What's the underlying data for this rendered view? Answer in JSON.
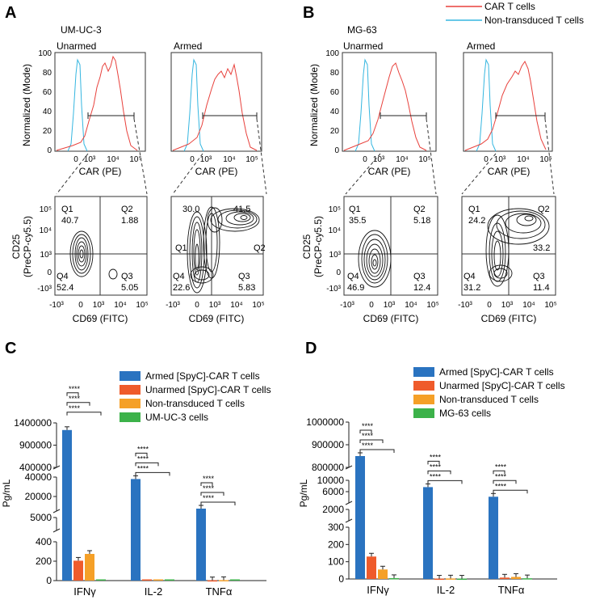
{
  "legend_top": {
    "car": "CAR T cells",
    "nontrans": "Non-transduced T cells"
  },
  "colors": {
    "car": "#e8413c",
    "nontrans": "#35b6e0",
    "armed": "#2a73c0",
    "unarmed": "#ef5b2b",
    "nontrans_bar": "#f5a028",
    "target": "#3cb24a"
  },
  "panels": {
    "A": "A",
    "B": "B",
    "C": "C",
    "D": "D"
  },
  "panel_A": {
    "cell_line": "UM-UC-3",
    "unarmed_label": "Unarmed",
    "armed_label": "Armed",
    "hist_ylabel": "Normalized (Mode)",
    "hist_yticks": [
      "0",
      "20",
      "40",
      "60",
      "80",
      "100"
    ],
    "hist_xlabel": "CAR  (PE)",
    "flow_ylabel_1": "CD25",
    "flow_ylabel_2": "(PreCP-cy5.5)",
    "flow_xlabel": "CD69 (FITC)",
    "flow_yticks": [
      "10⁵",
      "10⁴",
      "10³",
      "0",
      "-10³"
    ],
    "flow_xticks": [
      "-10³",
      "0",
      "10³",
      "10⁴",
      "10⁵"
    ],
    "hist_xticks": [
      "0",
      "10³",
      "10⁴",
      "10⁵"
    ],
    "unarmed_quads": {
      "q1": "Q1",
      "q1v": "40.7",
      "q2": "Q2",
      "q2v": "1.88",
      "q3": "Q3",
      "q3v": "5.05",
      "q4": "Q4",
      "q4v": "52.4"
    },
    "armed_quads": {
      "q1v": "30.0",
      "q2v": "41.5",
      "q1": "Q1",
      "q2": "Q2",
      "q3": "Q3",
      "q3v": "5.83",
      "q4": "Q4",
      "q4v": "22.6"
    }
  },
  "panel_B": {
    "cell_line": "MG-63",
    "unarmed_label": "Unarmed",
    "armed_label": "Armed",
    "unarmed_quads": {
      "q1": "Q1",
      "q1v": "35.5",
      "q2": "Q2",
      "q2v": "5.18",
      "q3": "Q3",
      "q3v": "12.4",
      "q4": "Q4",
      "q4v": "46.9"
    },
    "armed_quads": {
      "q1": "Q1",
      "q1v": "24.2",
      "q2": "Q2",
      "q2v": "33.2",
      "q3": "Q3",
      "q3v": "11.4",
      "q4": "Q4",
      "q4v": "31.2"
    }
  },
  "chart_data": [
    {
      "type": "bar",
      "panel": "C",
      "ylabel": "Pg/mL",
      "categories": [
        "IFNγ",
        "IL-2",
        "TNFα"
      ],
      "series": [
        {
          "name": "Armed [SpyC]-CAR T cells",
          "values": [
            1240000,
            38000,
            7500
          ]
        },
        {
          "name": "Unarmed [SpyC]-CAR T cells",
          "values": [
            205,
            0,
            3
          ]
        },
        {
          "name": "Non-transduced T cells",
          "values": [
            275,
            0,
            5
          ]
        },
        {
          "name": "UM-UC-3 cells",
          "values": [
            0,
            0,
            0
          ]
        }
      ],
      "y_segments": [
        {
          "range": [
            0,
            400
          ],
          "ticks": [
            "0",
            "200",
            "400"
          ]
        },
        {
          "range": [
            400,
            5000
          ],
          "ticks": [
            "5000"
          ]
        },
        {
          "range": [
            5000,
            40000
          ],
          "ticks": [
            "20000",
            "40000"
          ]
        },
        {
          "range": [
            400000,
            1400000
          ],
          "ticks": [
            "400000",
            "900000",
            "1400000"
          ]
        }
      ],
      "significance": "****"
    },
    {
      "type": "bar",
      "panel": "D",
      "ylabel": "Pg/mL",
      "categories": [
        "IFNγ",
        "IL-2",
        "TNFα"
      ],
      "series": [
        {
          "name": "Armed [SpyC]-CAR T cells",
          "values": [
            850000,
            7600,
            4200
          ]
        },
        {
          "name": "Unarmed [SpyC]-CAR T cells",
          "values": [
            130,
            2,
            8
          ]
        },
        {
          "name": "Non-transduced T cells",
          "values": [
            55,
            3,
            12
          ]
        },
        {
          "name": "MG-63 cells",
          "values": [
            5,
            2,
            4
          ]
        }
      ],
      "y_segments": [
        {
          "range": [
            0,
            300
          ],
          "ticks": [
            "0",
            "100",
            "200",
            "300"
          ]
        },
        {
          "range": [
            300,
            2000
          ],
          "ticks": [
            "2000"
          ]
        },
        {
          "range": [
            2000,
            10000
          ],
          "ticks": [
            "6000",
            "10000"
          ]
        },
        {
          "range": [
            800000,
            1000000
          ],
          "ticks": [
            "800000",
            "900000",
            "1000000"
          ]
        }
      ],
      "significance": "****"
    }
  ]
}
